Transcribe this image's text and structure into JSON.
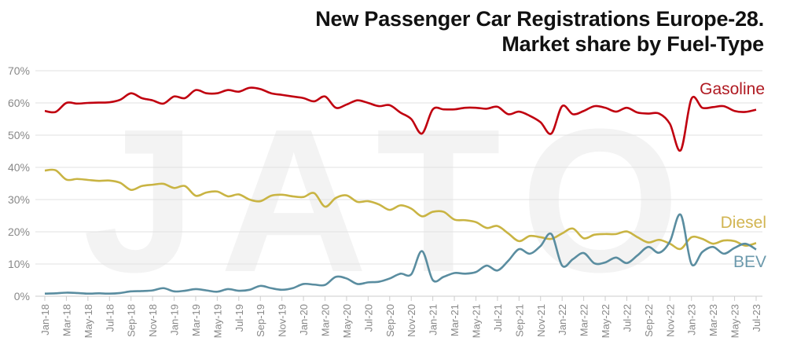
{
  "chart_data": {
    "type": "line",
    "title": "New Passenger Car Registrations Europe-28.",
    "subtitle": "Market share by Fuel-Type",
    "watermark": "JATO",
    "xlabel": "",
    "ylabel": "",
    "ylim": [
      0,
      70
    ],
    "y_ticks": [
      "0%",
      "10%",
      "20%",
      "30%",
      "40%",
      "50%",
      "60%",
      "70%"
    ],
    "grid": true,
    "legend": "inline-right",
    "x": [
      "Jan-18",
      "Feb-18",
      "Mar-18",
      "Apr-18",
      "May-18",
      "Jun-18",
      "Jul-18",
      "Aug-18",
      "Sep-18",
      "Oct-18",
      "Nov-18",
      "Dec-18",
      "Jan-19",
      "Feb-19",
      "Mar-19",
      "Apr-19",
      "May-19",
      "Jun-19",
      "Jul-19",
      "Aug-19",
      "Sep-19",
      "Oct-19",
      "Nov-19",
      "Dec-19",
      "Jan-20",
      "Feb-20",
      "Mar-20",
      "Apr-20",
      "May-20",
      "Jun-20",
      "Jul-20",
      "Aug-20",
      "Sep-20",
      "Oct-20",
      "Nov-20",
      "Dec-20",
      "Jan-21",
      "Feb-21",
      "Mar-21",
      "Apr-21",
      "May-21",
      "Jun-21",
      "Jul-21",
      "Aug-21",
      "Sep-21",
      "Oct-21",
      "Nov-21",
      "Dec-21",
      "Jan-22",
      "Feb-22",
      "Mar-22",
      "Apr-22",
      "May-22",
      "Jun-22",
      "Jul-22",
      "Aug-22",
      "Sep-22",
      "Oct-22",
      "Nov-22",
      "Dec-22",
      "Jan-23",
      "Feb-23",
      "Mar-23",
      "Apr-23",
      "May-23",
      "Jun-23",
      "Jul-23"
    ],
    "x_tick_labels": [
      "Jan-18",
      "Mar-18",
      "May-18",
      "Jul-18",
      "Sep-18",
      "Nov-18",
      "Jan-19",
      "Mar-19",
      "May-19",
      "Jul-19",
      "Sep-19",
      "Nov-19",
      "Jan-20",
      "Mar-20",
      "May-20",
      "Jul-20",
      "Sep-20",
      "Nov-20",
      "Jan-21",
      "Mar-21",
      "May-21",
      "Jul-21",
      "Sep-21",
      "Nov-21",
      "Jan-22",
      "Mar-22",
      "May-22",
      "Jul-22",
      "Sep-22",
      "Nov-22",
      "Jan-23",
      "Mar-23",
      "May-23",
      "Jul-23"
    ],
    "series": [
      {
        "name": "Gasoline",
        "color": "#c0000f",
        "label_color": "#b01a22",
        "values": [
          57.5,
          57.2,
          60,
          59.8,
          60,
          60.1,
          60.2,
          61,
          63,
          61.5,
          60.8,
          59.8,
          62,
          61.5,
          64,
          63,
          63,
          64,
          63.5,
          64.7,
          64.3,
          63,
          62.5,
          62,
          61.5,
          60.5,
          62,
          58.5,
          59.5,
          60.8,
          60,
          59,
          59.3,
          57,
          55,
          50.5,
          58,
          58,
          58,
          58.5,
          58.5,
          58.2,
          58.8,
          56.5,
          57.3,
          56,
          54,
          50.5,
          59,
          56.5,
          57.5,
          59,
          58.5,
          57.3,
          58.5,
          57,
          56.7,
          56.7,
          53.5,
          45.3,
          61.3,
          58.5,
          58.7,
          59,
          57.5,
          57.2,
          57.9
        ]
      },
      {
        "name": "Diesel",
        "color": "#c9b443",
        "label_color": "#d2b552",
        "values": [
          39,
          39.1,
          36.2,
          36.4,
          36.1,
          35.8,
          35.9,
          35.2,
          33,
          34.2,
          34.6,
          34.9,
          33.6,
          34.2,
          31.2,
          32.2,
          32.5,
          31,
          31.6,
          30,
          29.5,
          31.2,
          31.5,
          31,
          30.8,
          32,
          27.8,
          30.5,
          31.3,
          29.3,
          29.5,
          28.5,
          26.8,
          28.2,
          27.2,
          24.8,
          26.2,
          26.2,
          23.8,
          23.6,
          23,
          21.2,
          21.8,
          19.5,
          17.1,
          18.7,
          18.3,
          17.8,
          19.5,
          21,
          18,
          19.1,
          19.3,
          19.3,
          20.1,
          18.3,
          16.7,
          17.5,
          16.3,
          14.7,
          18.3,
          17.8,
          16.3,
          17.3,
          17.1,
          15.7,
          16.5
        ]
      },
      {
        "name": "BEV",
        "color": "#5a8da0",
        "label_color": "#6b99ac",
        "values": [
          0.8,
          0.9,
          1.1,
          1,
          0.8,
          0.9,
          0.8,
          1,
          1.5,
          1.6,
          1.8,
          2.5,
          1.5,
          1.7,
          2.2,
          1.8,
          1.4,
          2.2,
          1.7,
          2,
          3.2,
          2.5,
          2,
          2.5,
          3.8,
          3.6,
          3.5,
          6,
          5.5,
          3.8,
          4.3,
          4.5,
          5.5,
          7,
          6.8,
          14,
          5,
          6,
          7.2,
          7,
          7.5,
          9.5,
          8,
          11,
          14.6,
          13.2,
          15.6,
          19.3,
          9.5,
          11.5,
          13.4,
          10.2,
          10.5,
          12,
          10.3,
          12.7,
          15.3,
          13.5,
          17,
          25.3,
          10,
          13.7,
          15.3,
          13.2,
          15,
          16.3,
          14.5
        ]
      }
    ]
  }
}
